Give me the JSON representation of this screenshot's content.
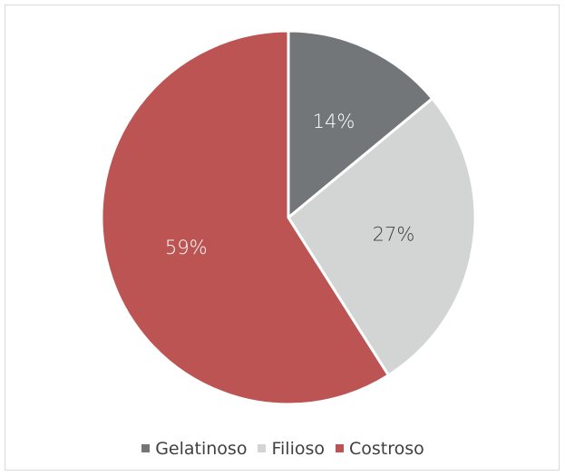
{
  "chart_data": {
    "type": "pie",
    "title": "",
    "slices": [
      {
        "name": "Gelatinoso",
        "value": 14,
        "label": "14%",
        "color": "#737679",
        "label_color": "#ffffff"
      },
      {
        "name": "Filioso",
        "value": 27,
        "label": "27%",
        "color": "#d3d4d4",
        "label_color": "#404040"
      },
      {
        "name": "Costroso",
        "value": 59,
        "label": "59%",
        "color": "#bc5453",
        "label_color": "#ffffff"
      }
    ],
    "legend_position": "bottom",
    "start_angle": "top",
    "direction": "clockwise"
  }
}
